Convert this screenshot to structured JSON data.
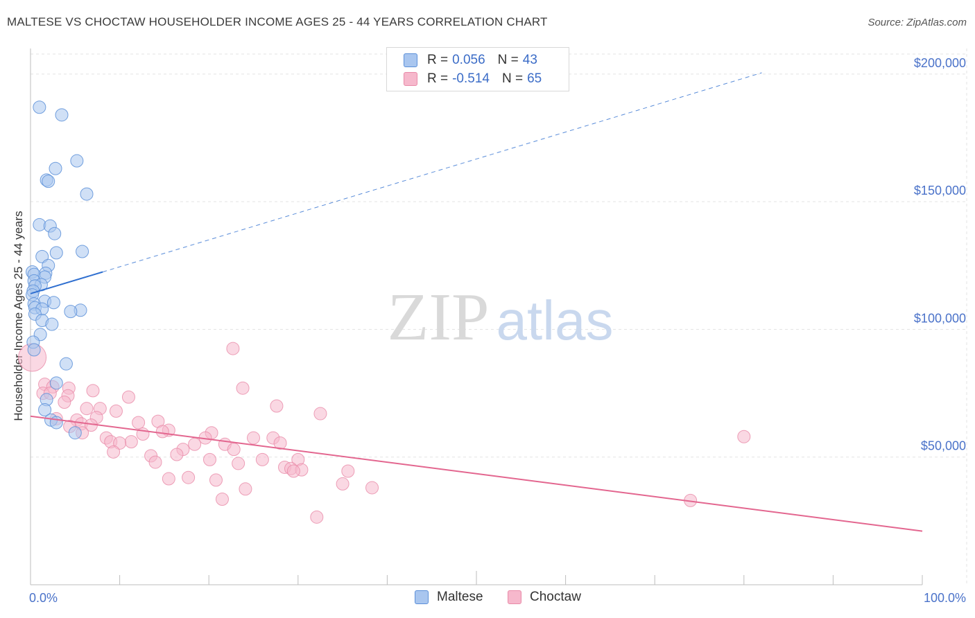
{
  "title": "MALTESE VS CHOCTAW HOUSEHOLDER INCOME AGES 25 - 44 YEARS CORRELATION CHART",
  "source": "Source: ZipAtlas.com",
  "watermark": {
    "zip": "ZIP",
    "atlas": "atlas"
  },
  "legend": {
    "maltese": {
      "r_label": "R =",
      "r_value": "0.056",
      "n_label": "N =",
      "n_value": "43"
    },
    "choctaw": {
      "r_label": "R =",
      "r_value": "-0.514",
      "n_label": "N =",
      "n_value": "65"
    }
  },
  "colors": {
    "maltese_fill": "#a9c6ef",
    "maltese_stroke": "#5b8fd8",
    "maltese_line": "#2f6fd0",
    "choctaw_fill": "#f6b8cc",
    "choctaw_stroke": "#e98aa8",
    "choctaw_line": "#e3668f",
    "label_blue": "#4a72c9"
  },
  "chart_data": {
    "type": "scatter",
    "title": "MALTESE VS CHOCTAW HOUSEHOLDER INCOME AGES 25 - 44 YEARS CORRELATION CHART",
    "xlabel": "",
    "ylabel": "Householder Income Ages 25 - 44 years",
    "xlim": [
      0,
      100
    ],
    "ylim": [
      0,
      210000
    ],
    "x_tick_labels": [
      "0.0%",
      "100.0%"
    ],
    "y_ticks": [
      50000,
      100000,
      150000,
      200000
    ],
    "y_tick_labels": [
      "$50,000",
      "$100,000",
      "$150,000",
      "$200,000"
    ],
    "grid": true,
    "series": [
      {
        "name": "Maltese",
        "points": [
          [
            1.0,
            187000
          ],
          [
            3.5,
            184000
          ],
          [
            5.2,
            166000
          ],
          [
            2.8,
            163000
          ],
          [
            1.8,
            158500
          ],
          [
            2.0,
            158000
          ],
          [
            6.3,
            153000
          ],
          [
            1.0,
            141000
          ],
          [
            2.2,
            140500
          ],
          [
            2.7,
            137500
          ],
          [
            5.8,
            130500
          ],
          [
            2.9,
            130000
          ],
          [
            1.3,
            128500
          ],
          [
            2.0,
            125000
          ],
          [
            0.2,
            122500
          ],
          [
            1.7,
            122000
          ],
          [
            0.4,
            121500
          ],
          [
            1.6,
            120500
          ],
          [
            0.4,
            119000
          ],
          [
            1.2,
            117500
          ],
          [
            0.5,
            117000
          ],
          [
            0.3,
            115000
          ],
          [
            0.2,
            113500
          ],
          [
            1.6,
            111000
          ],
          [
            2.6,
            110500
          ],
          [
            0.4,
            110000
          ],
          [
            0.5,
            108500
          ],
          [
            1.3,
            108000
          ],
          [
            5.6,
            107500
          ],
          [
            4.5,
            107000
          ],
          [
            0.5,
            106000
          ],
          [
            1.3,
            103500
          ],
          [
            2.4,
            102000
          ],
          [
            1.1,
            98000
          ],
          [
            0.3,
            95000
          ],
          [
            4.0,
            86500
          ],
          [
            2.9,
            79000
          ],
          [
            1.8,
            72500
          ],
          [
            1.6,
            68500
          ],
          [
            2.3,
            64500
          ],
          [
            2.9,
            63500
          ],
          [
            5.0,
            59500
          ],
          [
            0.4,
            92000
          ]
        ],
        "trend": {
          "x": [
            0,
            8.1
          ],
          "y": [
            114000,
            122500
          ],
          "extended_x": [
            8.1,
            82
          ],
          "extended_y": [
            122500,
            200500
          ]
        }
      },
      {
        "name": "Choctaw",
        "points": [
          [
            0.2,
            89000
          ],
          [
            22.7,
            92500
          ],
          [
            1.6,
            78500
          ],
          [
            2.5,
            77500
          ],
          [
            4.3,
            77000
          ],
          [
            23.8,
            77000
          ],
          [
            1.4,
            75000
          ],
          [
            2.2,
            75000
          ],
          [
            4.2,
            74000
          ],
          [
            11.0,
            73500
          ],
          [
            3.8,
            71500
          ],
          [
            27.6,
            70000
          ],
          [
            6.3,
            69000
          ],
          [
            7.8,
            69000
          ],
          [
            9.6,
            68000
          ],
          [
            32.5,
            67000
          ],
          [
            7.4,
            65500
          ],
          [
            2.9,
            65000
          ],
          [
            5.2,
            64500
          ],
          [
            14.3,
            64000
          ],
          [
            12.1,
            63500
          ],
          [
            5.7,
            63000
          ],
          [
            6.8,
            62500
          ],
          [
            4.4,
            62000
          ],
          [
            15.5,
            60500
          ],
          [
            14.8,
            60000
          ],
          [
            5.8,
            59500
          ],
          [
            20.3,
            59500
          ],
          [
            12.6,
            59000
          ],
          [
            19.6,
            57500
          ],
          [
            25.0,
            57500
          ],
          [
            27.2,
            57500
          ],
          [
            80.0,
            58000
          ],
          [
            8.5,
            57500
          ],
          [
            9.0,
            56000
          ],
          [
            11.3,
            56000
          ],
          [
            10.0,
            55500
          ],
          [
            28.0,
            55500
          ],
          [
            18.4,
            55000
          ],
          [
            21.8,
            55000
          ],
          [
            17.1,
            53000
          ],
          [
            22.8,
            53000
          ],
          [
            9.3,
            52000
          ],
          [
            16.4,
            51000
          ],
          [
            13.5,
            50500
          ],
          [
            26.0,
            49000
          ],
          [
            30.0,
            49000
          ],
          [
            20.1,
            49000
          ],
          [
            14.0,
            48000
          ],
          [
            23.3,
            47500
          ],
          [
            28.5,
            46000
          ],
          [
            29.2,
            45500
          ],
          [
            30.4,
            45000
          ],
          [
            35.6,
            44500
          ],
          [
            15.5,
            41500
          ],
          [
            17.7,
            42000
          ],
          [
            20.8,
            41000
          ],
          [
            35.0,
            39500
          ],
          [
            38.3,
            38000
          ],
          [
            24.1,
            37500
          ],
          [
            21.5,
            33500
          ],
          [
            74.0,
            33000
          ],
          [
            32.1,
            26500
          ],
          [
            29.5,
            44500
          ],
          [
            7.0,
            76000
          ]
        ],
        "trend": {
          "x": [
            0,
            100
          ],
          "y": [
            66000,
            21000
          ]
        }
      }
    ]
  }
}
